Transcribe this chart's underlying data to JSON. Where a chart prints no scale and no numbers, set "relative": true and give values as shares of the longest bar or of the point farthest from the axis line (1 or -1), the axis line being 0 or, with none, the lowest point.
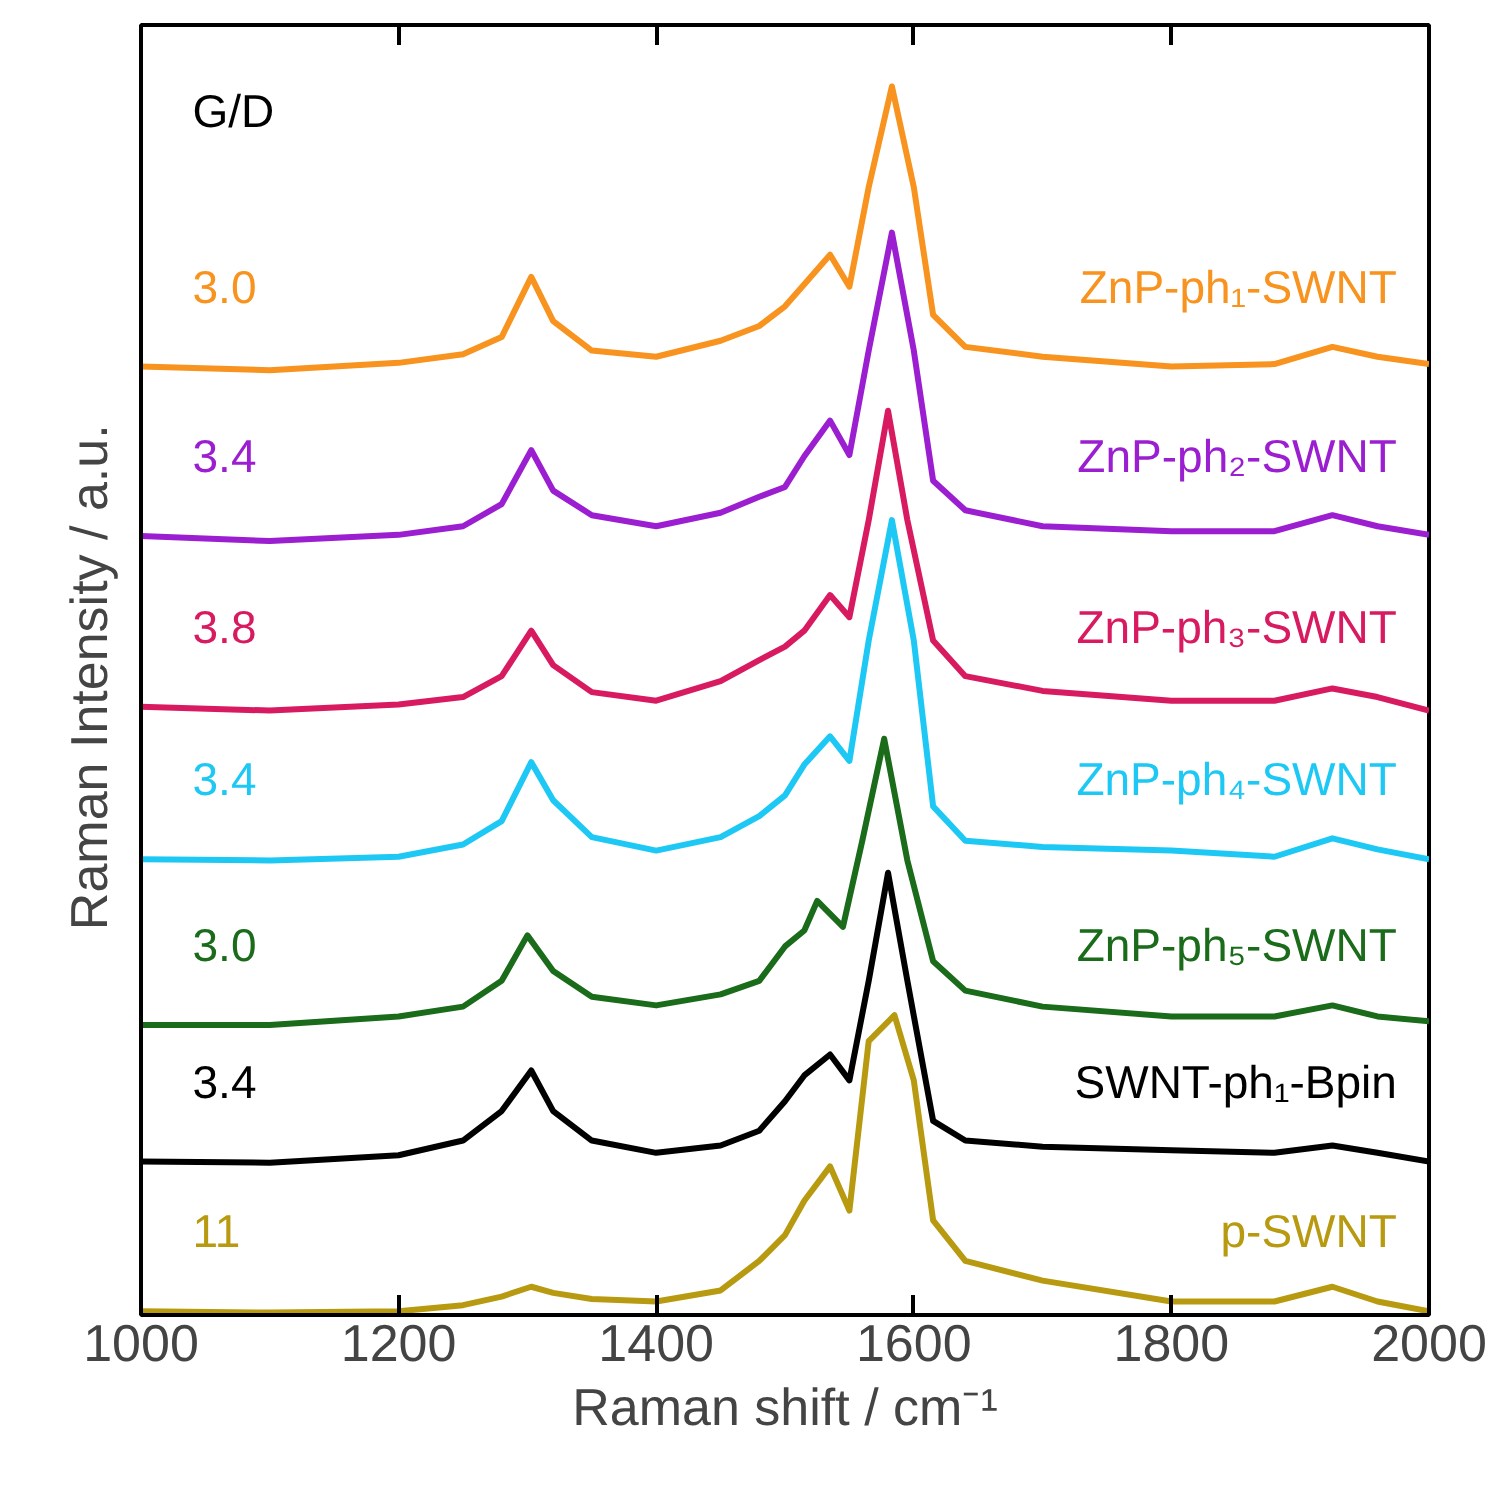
{
  "chart_data": {
    "type": "line",
    "relative": true,
    "xlabel": "Raman shift / cm⁻¹",
    "ylabel": "Raman Intensity  / a.u.",
    "xlim": [
      1000,
      2000
    ],
    "xticks": [
      1000,
      1200,
      1400,
      1600,
      1800,
      2000
    ],
    "grid": false,
    "annotations": [
      "G/D",
      "3.0",
      "3.4",
      "3.8",
      "3.4",
      "3.0",
      "3.4",
      "11"
    ],
    "series": [
      {
        "name": "ZnP-ph₁-SWNT",
        "color": "#f7931e",
        "x": [
          1000,
          1100,
          1200,
          1250,
          1280,
          1303,
          1320,
          1350,
          1400,
          1450,
          1480,
          1500,
          1515,
          1535,
          1550,
          1565,
          1583,
          1600,
          1615,
          1640,
          1700,
          1800,
          1880,
          1925,
          1960,
          2000
        ],
        "values": [
          0.772,
          0.769,
          0.775,
          0.782,
          0.796,
          0.845,
          0.809,
          0.785,
          0.78,
          0.793,
          0.805,
          0.821,
          0.839,
          0.863,
          0.837,
          0.918,
          1.0,
          0.918,
          0.814,
          0.788,
          0.78,
          0.772,
          0.774,
          0.788,
          0.78,
          0.774
        ]
      },
      {
        "name": "ZnP-ph₂-SWNT",
        "color": "#9b1fd0",
        "x": [
          1000,
          1100,
          1200,
          1250,
          1280,
          1303,
          1320,
          1350,
          1400,
          1450,
          1480,
          1500,
          1515,
          1535,
          1550,
          1565,
          1583,
          1600,
          1615,
          1640,
          1700,
          1800,
          1880,
          1925,
          1960,
          2000
        ],
        "values": [
          0.634,
          0.63,
          0.635,
          0.642,
          0.66,
          0.704,
          0.671,
          0.651,
          0.642,
          0.653,
          0.666,
          0.674,
          0.699,
          0.728,
          0.7,
          0.785,
          0.881,
          0.785,
          0.679,
          0.655,
          0.642,
          0.638,
          0.638,
          0.651,
          0.642,
          0.635
        ]
      },
      {
        "name": "ZnP-ph₃-SWNT",
        "color": "#d81b60",
        "x": [
          1000,
          1100,
          1200,
          1250,
          1280,
          1303,
          1320,
          1350,
          1400,
          1450,
          1480,
          1500,
          1515,
          1535,
          1550,
          1565,
          1580,
          1595,
          1615,
          1640,
          1700,
          1800,
          1880,
          1925,
          1960,
          2000
        ],
        "values": [
          0.495,
          0.492,
          0.497,
          0.503,
          0.52,
          0.557,
          0.529,
          0.507,
          0.5,
          0.516,
          0.533,
          0.544,
          0.557,
          0.586,
          0.568,
          0.647,
          0.736,
          0.647,
          0.549,
          0.52,
          0.508,
          0.5,
          0.5,
          0.51,
          0.503,
          0.492
        ]
      },
      {
        "name": "ZnP-ph₄-SWNT",
        "color": "#1ec8f5",
        "x": [
          1000,
          1100,
          1200,
          1250,
          1280,
          1303,
          1320,
          1350,
          1400,
          1450,
          1480,
          1500,
          1515,
          1535,
          1550,
          1565,
          1583,
          1600,
          1615,
          1640,
          1700,
          1800,
          1880,
          1925,
          1960,
          2000
        ],
        "values": [
          0.371,
          0.37,
          0.373,
          0.383,
          0.402,
          0.45,
          0.419,
          0.389,
          0.378,
          0.389,
          0.406,
          0.423,
          0.448,
          0.471,
          0.451,
          0.549,
          0.647,
          0.549,
          0.414,
          0.386,
          0.381,
          0.378,
          0.373,
          0.388,
          0.379,
          0.371
        ]
      },
      {
        "name": "ZnP-ph₅-SWNT",
        "color": "#1a6b1a",
        "x": [
          1000,
          1100,
          1200,
          1250,
          1280,
          1300,
          1320,
          1350,
          1400,
          1450,
          1480,
          1500,
          1515,
          1525,
          1545,
          1560,
          1577,
          1595,
          1615,
          1640,
          1700,
          1800,
          1880,
          1925,
          1960,
          2000
        ],
        "values": [
          0.236,
          0.236,
          0.243,
          0.251,
          0.272,
          0.309,
          0.28,
          0.259,
          0.252,
          0.261,
          0.272,
          0.3,
          0.313,
          0.337,
          0.316,
          0.386,
          0.469,
          0.37,
          0.288,
          0.264,
          0.251,
          0.243,
          0.243,
          0.252,
          0.243,
          0.239
        ]
      },
      {
        "name": "SWNT-ph₁-Bpin",
        "color": "#000000",
        "x": [
          1000,
          1100,
          1200,
          1250,
          1280,
          1303,
          1320,
          1350,
          1400,
          1450,
          1480,
          1500,
          1515,
          1535,
          1550,
          1565,
          1580,
          1595,
          1615,
          1640,
          1700,
          1800,
          1880,
          1925,
          1960,
          2000
        ],
        "values": [
          0.125,
          0.124,
          0.13,
          0.142,
          0.166,
          0.199,
          0.166,
          0.142,
          0.132,
          0.138,
          0.15,
          0.174,
          0.195,
          0.212,
          0.191,
          0.272,
          0.36,
          0.272,
          0.158,
          0.142,
          0.137,
          0.134,
          0.132,
          0.138,
          0.132,
          0.125
        ]
      },
      {
        "name": "p-SWNT",
        "color": "#b89a10",
        "x": [
          1000,
          1100,
          1200,
          1250,
          1280,
          1303,
          1320,
          1350,
          1400,
          1450,
          1480,
          1500,
          1515,
          1535,
          1550,
          1565,
          1585,
          1600,
          1615,
          1640,
          1700,
          1800,
          1880,
          1925,
          1960,
          2000
        ],
        "values": [
          0.003,
          0.002,
          0.003,
          0.008,
          0.015,
          0.023,
          0.018,
          0.013,
          0.011,
          0.02,
          0.044,
          0.065,
          0.093,
          0.121,
          0.085,
          0.223,
          0.244,
          0.191,
          0.077,
          0.044,
          0.028,
          0.011,
          0.011,
          0.023,
          0.011,
          0.003
        ]
      }
    ]
  }
}
